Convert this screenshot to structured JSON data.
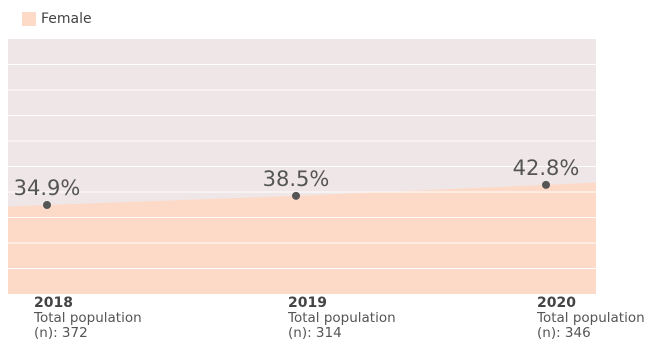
{
  "colors": {
    "area": "#fdd9c7",
    "background": "#efe7e7",
    "gridline": "#ffffff",
    "marker": "#555555",
    "text": "#555555"
  },
  "chart_data": {
    "type": "area",
    "x": [
      "2018",
      "2019",
      "2020"
    ],
    "series": [
      {
        "name": "Female",
        "values": [
          34.9,
          38.5,
          42.8
        ],
        "labels": [
          "34.9%",
          "38.5%",
          "42.8%"
        ]
      }
    ],
    "ylim": [
      0,
      100
    ],
    "grid": true,
    "legend": "top-left",
    "xlabel": "",
    "ylabel": "",
    "title": "",
    "category_details": [
      {
        "year": "2018",
        "line1": "Total population",
        "line2": "(n): 372"
      },
      {
        "year": "2019",
        "line1": "Total population",
        "line2": "(n): 314"
      },
      {
        "year": "2020",
        "line1": "Total population",
        "line2": "(n): 346"
      }
    ]
  }
}
